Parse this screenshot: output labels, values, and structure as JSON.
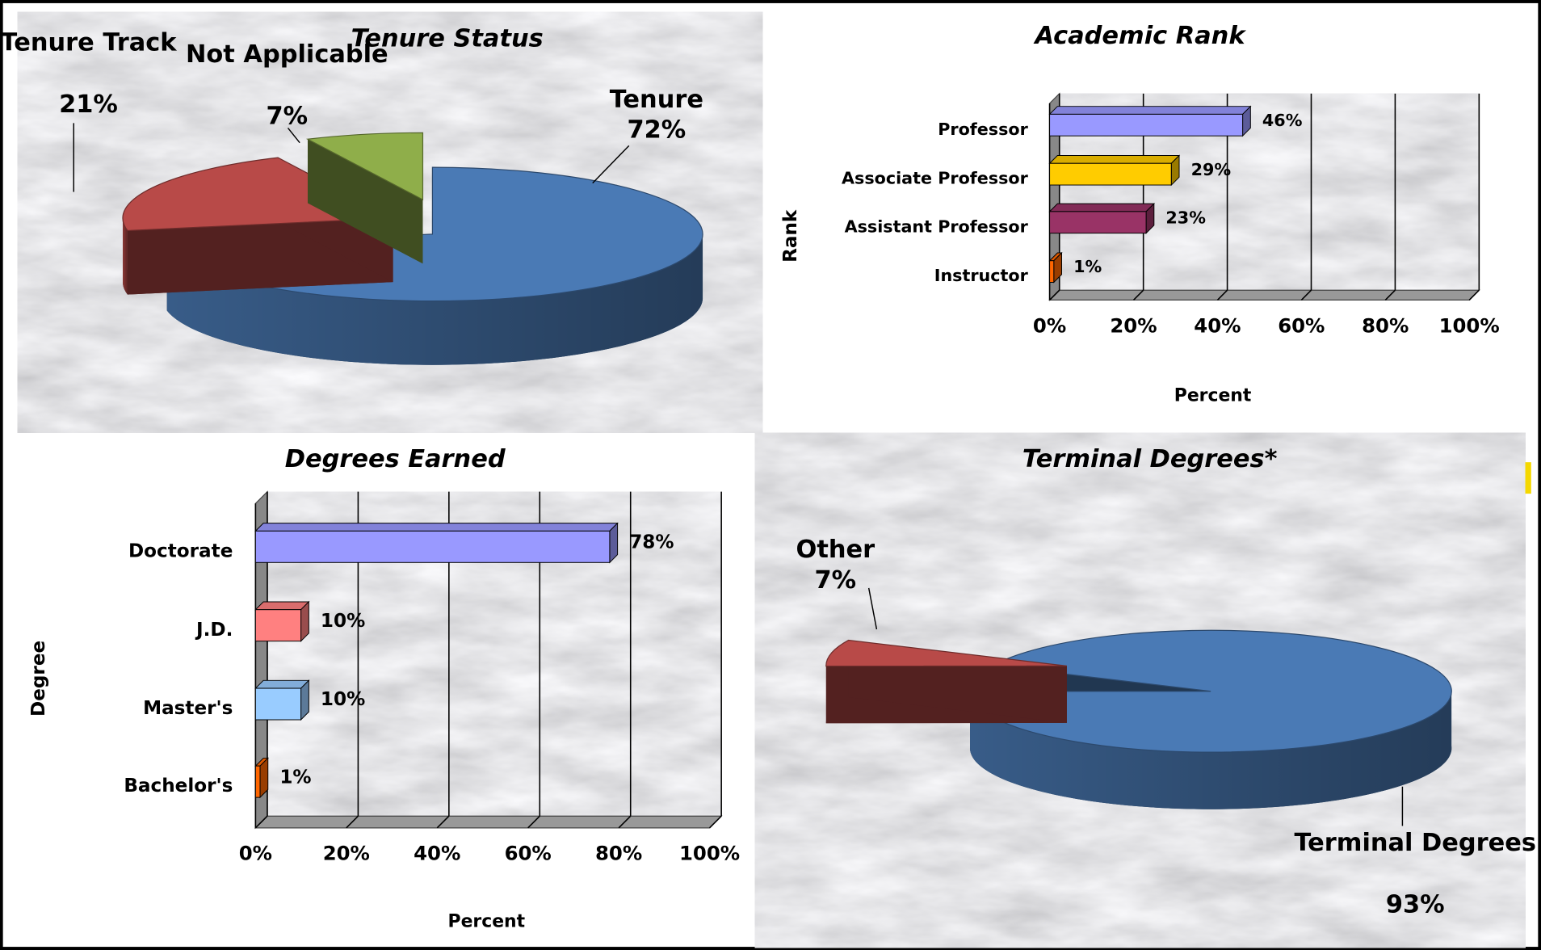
{
  "chart_data": [
    {
      "type": "pie",
      "title": "Tenure Status",
      "categories": [
        "Tenure",
        "Tenure Track",
        "Not Applicable"
      ],
      "values": [
        72,
        21,
        7
      ],
      "value_labels": [
        "72%",
        "21%",
        "7%"
      ],
      "colors": [
        "#4a7ab5",
        "#b84a48",
        "#8fae4a"
      ]
    },
    {
      "type": "bar",
      "title": "Academic Rank",
      "categories": [
        "Professor",
        "Associate Professor",
        "Assistant Professor",
        "Instructor"
      ],
      "values": [
        46,
        29,
        23,
        1
      ],
      "value_labels": [
        "46%",
        "29%",
        "23%",
        "1%"
      ],
      "colors": [
        "#9999ff",
        "#ffcc00",
        "#993366",
        "#ff6600"
      ],
      "xlim": [
        0,
        100
      ],
      "xticks": [
        {
          "value": 0,
          "label": "0%"
        },
        {
          "value": 20,
          "label": "20%"
        },
        {
          "value": 40,
          "label": "40%"
        },
        {
          "value": 60,
          "label": "60%"
        },
        {
          "value": 80,
          "label": "80%"
        },
        {
          "value": 100,
          "label": "100%"
        }
      ],
      "xlabel": "Percent",
      "ylabel": "Rank",
      "grid": true
    },
    {
      "type": "bar",
      "title": "Degrees Earned",
      "categories": [
        "Doctorate",
        "J.D.",
        "Master's",
        "Bachelor's"
      ],
      "values": [
        78,
        10,
        10,
        1
      ],
      "value_labels": [
        "78%",
        "10%",
        "10%",
        "1%"
      ],
      "colors": [
        "#9999ff",
        "#ff8080",
        "#99ccff",
        "#ff6600"
      ],
      "xlim": [
        0,
        100
      ],
      "xticks": [
        {
          "value": 0,
          "label": "0%"
        },
        {
          "value": 20,
          "label": "20%"
        },
        {
          "value": 40,
          "label": "40%"
        },
        {
          "value": 60,
          "label": "60%"
        },
        {
          "value": 80,
          "label": "80%"
        },
        {
          "value": 100,
          "label": "100%"
        }
      ],
      "xlabel": "Percent",
      "ylabel": "Degree",
      "grid": true
    },
    {
      "type": "pie",
      "title": "Terminal Degrees*",
      "categories": [
        "Terminal Degrees",
        "Other"
      ],
      "values": [
        93,
        7
      ],
      "value_labels": [
        "93%",
        "7%"
      ],
      "colors": [
        "#4a7ab5",
        "#b84a48"
      ]
    }
  ]
}
